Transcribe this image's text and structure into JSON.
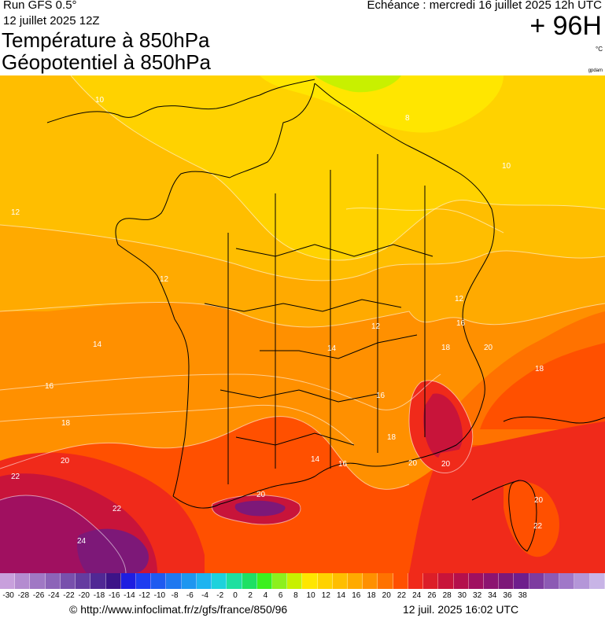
{
  "header": {
    "run": "Run GFS 0.5°",
    "run_date": "12 juillet 2025 12Z",
    "title_temperature": "Température à 850hPa",
    "title_geopotential": "Géopotentiel à 850hPa",
    "echeance": "Echéance : mercredi 16 juillet 2025 12h UTC",
    "lead_time": "+ 96H",
    "unit": "°C",
    "brand": "gpdam"
  },
  "map": {
    "contour_labels": [
      "10",
      "8",
      "10",
      "12",
      "12",
      "12",
      "14",
      "14",
      "12",
      "16",
      "16",
      "18",
      "18",
      "18",
      "20",
      "20",
      "20",
      "20",
      "22",
      "22",
      "24",
      "20",
      "22",
      "16",
      "18",
      "14",
      "16",
      "20"
    ],
    "colors": {
      "t8": "#ffe600",
      "t10": "#ffd200",
      "t12": "#ffbe00",
      "t14": "#ffaa00",
      "t16": "#ff9000",
      "t18": "#ff7200",
      "t20": "#ff5000",
      "t22": "#f02a1a",
      "t24": "#c8143a",
      "t26": "#a01060",
      "t28": "#7d1878",
      "cold": "#c8f000"
    }
  },
  "color_scale": {
    "tick_labels": [
      "-30",
      "-28",
      "-26",
      "-24",
      "-22",
      "-20",
      "-18",
      "-16",
      "-14",
      "-12",
      "-10",
      "-8",
      "-6",
      "-4",
      "-2",
      "0",
      "2",
      "4",
      "6",
      "8",
      "10",
      "12",
      "14",
      "16",
      "18",
      "20",
      "22",
      "24",
      "26",
      "28",
      "30",
      "32",
      "34",
      "36",
      "38"
    ],
    "swatches": [
      "#c8a0dc",
      "#b48cd0",
      "#a078c4",
      "#8c64b8",
      "#7850ac",
      "#643ca0",
      "#502894",
      "#3c1488",
      "#1e1ee0",
      "#1e3cf0",
      "#1e5af0",
      "#1e78f0",
      "#1e96f0",
      "#1eb4f0",
      "#1ed2dc",
      "#1ee0a0",
      "#1ee064",
      "#3cf01e",
      "#8cf01e",
      "#c8f000",
      "#ffe600",
      "#ffd200",
      "#ffbe00",
      "#ffaa00",
      "#ff9000",
      "#ff7200",
      "#ff5000",
      "#f02a1a",
      "#dc1e28",
      "#c8143a",
      "#b4104c",
      "#a01060",
      "#8c1470",
      "#7d1878",
      "#6e1e8c",
      "#7d3ca0",
      "#8c5ab4",
      "#a078c8",
      "#b496d8",
      "#c8b4e6"
    ]
  },
  "footer": {
    "source": "© http://www.infoclimat.fr/z/gfs/france/850/96",
    "generated": "12 juil. 2025 16:02 UTC"
  }
}
